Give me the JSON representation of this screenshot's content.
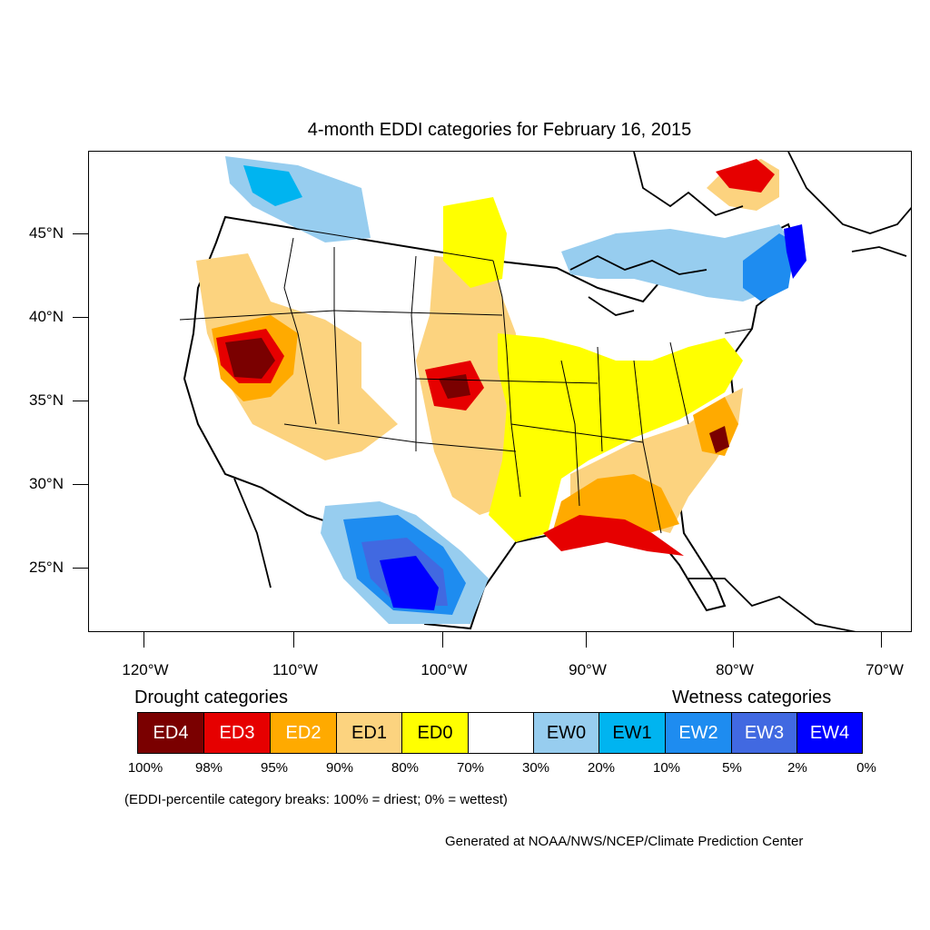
{
  "title": "4-month EDDI categories for February 16, 2015",
  "map": {
    "lat_labels": [
      "45°N",
      "40°N",
      "35°N",
      "30°N",
      "25°N"
    ],
    "lon_labels": [
      "120°W",
      "110°W",
      "100°W",
      "90°W",
      "80°W",
      "70°W"
    ]
  },
  "legend": {
    "drought_heading": "Drought categories",
    "wetness_heading": "Wetness categories",
    "categories": [
      {
        "label": "ED4",
        "color": "#7a0000",
        "text_color": "#ffffff"
      },
      {
        "label": "ED3",
        "color": "#e60000",
        "text_color": "#ffffff"
      },
      {
        "label": "ED2",
        "color": "#ffaa00",
        "text_color": "#ffffff"
      },
      {
        "label": "ED1",
        "color": "#fcd37f",
        "text_color": "#000000"
      },
      {
        "label": "ED0",
        "color": "#ffff00",
        "text_color": "#000000"
      },
      {
        "label": "",
        "color": "#ffffff",
        "text_color": "#000000"
      },
      {
        "label": "EW0",
        "color": "#97cdef",
        "text_color": "#000000"
      },
      {
        "label": "EW1",
        "color": "#00b4f0",
        "text_color": "#000000"
      },
      {
        "label": "EW2",
        "color": "#1e8cf0",
        "text_color": "#ffffff"
      },
      {
        "label": "EW3",
        "color": "#4169e1",
        "text_color": "#ffffff"
      },
      {
        "label": "EW4",
        "color": "#0000ff",
        "text_color": "#ffffff"
      }
    ],
    "breaks": [
      "100%",
      "98%",
      "95%",
      "90%",
      "80%",
      "70%",
      "30%",
      "20%",
      "10%",
      "5%",
      "2%",
      "0%"
    ],
    "note": "(EDDI-percentile category breaks: 100% = driest; 0% = wettest)"
  },
  "credit": "Generated at NOAA/NWS/NCEP/Climate Prediction Center"
}
